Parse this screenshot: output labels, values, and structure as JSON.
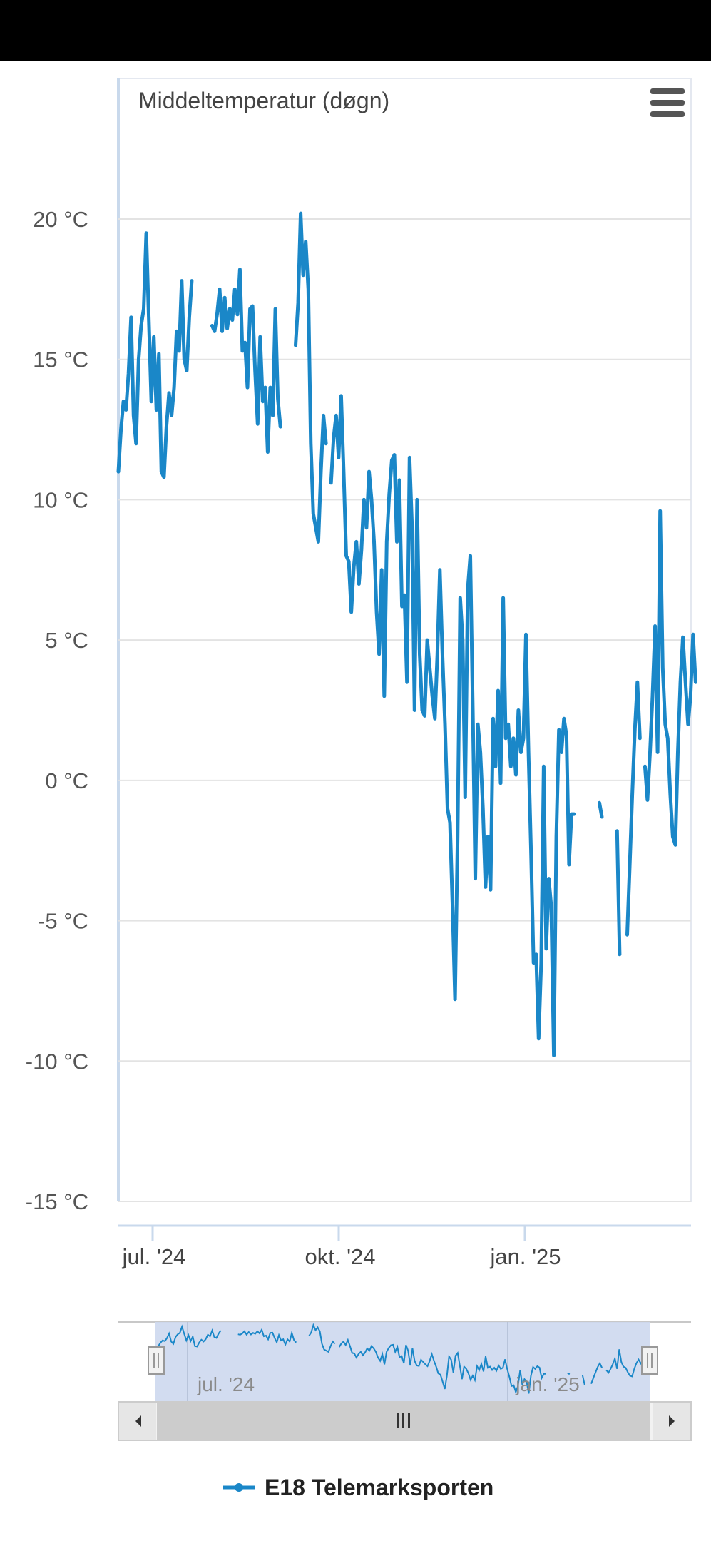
{
  "chart_data": {
    "type": "line",
    "title": "Middeltemperatur (døgn)",
    "yticks": [
      "20 °C",
      "15 °C",
      "10 °C",
      "5 °C",
      "0 °C",
      "-5 °C",
      "-10 °C",
      "-15 °C"
    ],
    "ylim": [
      -15,
      20
    ],
    "xticks": [
      "jul. '24",
      "okt. '24",
      "jan. '25"
    ],
    "navigator": {
      "xticks": [
        "jul. '24",
        "jan. '25"
      ]
    },
    "grid": true,
    "legend_position": "bottom",
    "series": [
      {
        "name": "E18 Telemarksporten",
        "color": "#1a87c8",
        "values": [
          [
            0,
            11
          ],
          [
            1,
            12.5
          ],
          [
            2,
            13.5
          ],
          [
            3,
            13.2
          ],
          [
            4,
            14.5
          ],
          [
            5,
            16.5
          ],
          [
            6,
            13
          ],
          [
            7,
            12
          ],
          [
            8,
            15
          ],
          [
            9,
            16.2
          ],
          [
            10,
            16.8
          ],
          [
            11,
            19.5
          ],
          [
            12,
            16.5
          ],
          [
            13,
            13.5
          ],
          [
            14,
            15.8
          ],
          [
            15,
            13.2
          ],
          [
            16,
            15.2
          ],
          [
            17,
            11
          ],
          [
            18,
            10.8
          ],
          [
            19,
            12.6
          ],
          [
            20,
            13.8
          ],
          [
            21,
            13
          ],
          [
            22,
            14
          ],
          [
            23,
            16
          ],
          [
            24,
            15.3
          ],
          [
            25,
            17.8
          ],
          [
            26,
            15
          ],
          [
            27,
            14.6
          ],
          [
            28,
            16.5
          ],
          [
            29,
            17.8
          ],
          [
            37,
            16.2
          ],
          [
            38,
            16
          ],
          [
            39,
            16.6
          ],
          [
            40,
            17.5
          ],
          [
            41,
            16
          ],
          [
            42,
            17.2
          ],
          [
            43,
            16.1
          ],
          [
            44,
            16.8
          ],
          [
            45,
            16.4
          ],
          [
            46,
            17.5
          ],
          [
            47,
            16.6
          ],
          [
            48,
            18.2
          ],
          [
            49,
            15.3
          ],
          [
            50,
            15.6
          ],
          [
            51,
            14
          ],
          [
            52,
            16.8
          ],
          [
            53,
            16.9
          ],
          [
            54,
            14.6
          ],
          [
            55,
            12.7
          ],
          [
            56,
            15.8
          ],
          [
            57,
            13.5
          ],
          [
            58,
            14
          ],
          [
            59,
            11.7
          ],
          [
            60,
            14
          ],
          [
            61,
            13
          ],
          [
            62,
            16.8
          ],
          [
            63,
            13.6
          ],
          [
            64,
            12.6
          ],
          [
            70,
            15.5
          ],
          [
            71,
            17
          ],
          [
            72,
            20.2
          ],
          [
            73,
            18
          ],
          [
            74,
            19.2
          ],
          [
            75,
            17.5
          ],
          [
            76,
            12
          ],
          [
            77,
            9.5
          ],
          [
            78,
            9
          ],
          [
            79,
            8.5
          ],
          [
            80,
            11
          ],
          [
            81,
            13
          ],
          [
            82,
            12
          ],
          [
            84,
            10.6
          ],
          [
            85,
            12.2
          ],
          [
            86,
            13
          ],
          [
            87,
            11.5
          ],
          [
            88,
            13.7
          ],
          [
            89,
            11
          ],
          [
            90,
            8
          ],
          [
            91,
            7.8
          ],
          [
            92,
            6
          ],
          [
            93,
            7.6
          ],
          [
            94,
            8.5
          ],
          [
            95,
            7
          ],
          [
            96,
            8.2
          ],
          [
            97,
            10
          ],
          [
            98,
            9
          ],
          [
            99,
            11
          ],
          [
            100,
            10
          ],
          [
            101,
            8.5
          ],
          [
            102,
            6
          ],
          [
            103,
            4.5
          ],
          [
            104,
            7.5
          ],
          [
            105,
            3
          ],
          [
            106,
            8.5
          ],
          [
            107,
            10.2
          ],
          [
            108,
            11.4
          ],
          [
            109,
            11.6
          ],
          [
            110,
            8.5
          ],
          [
            111,
            10.7
          ],
          [
            112,
            6.2
          ],
          [
            113,
            6.6
          ],
          [
            114,
            3.5
          ],
          [
            115,
            11.5
          ],
          [
            116,
            9
          ],
          [
            117,
            2.5
          ],
          [
            118,
            10
          ],
          [
            119,
            4.5
          ],
          [
            120,
            2.5
          ],
          [
            121,
            2.3
          ],
          [
            122,
            5
          ],
          [
            123,
            4
          ],
          [
            124,
            3
          ],
          [
            125,
            2.2
          ],
          [
            126,
            4.5
          ],
          [
            127,
            7.5
          ],
          [
            128,
            4.5
          ],
          [
            129,
            2
          ],
          [
            130,
            -1
          ],
          [
            131,
            -1.5
          ],
          [
            132,
            -4.5
          ],
          [
            133,
            -7.8
          ],
          [
            134,
            -2
          ],
          [
            135,
            6.5
          ],
          [
            136,
            5
          ],
          [
            137,
            -0.6
          ],
          [
            138,
            6.8
          ],
          [
            139,
            8
          ],
          [
            140,
            2.5
          ],
          [
            141,
            -3.5
          ],
          [
            142,
            2
          ],
          [
            143,
            1
          ],
          [
            144,
            -1
          ],
          [
            145,
            -3.8
          ],
          [
            146,
            -2
          ],
          [
            147,
            -3.9
          ],
          [
            148,
            2.2
          ],
          [
            149,
            0.5
          ],
          [
            150,
            3.2
          ],
          [
            151,
            -0.1
          ],
          [
            152,
            6.5
          ],
          [
            153,
            1.5
          ],
          [
            154,
            2
          ],
          [
            155,
            0.5
          ],
          [
            156,
            1.5
          ],
          [
            157,
            0.2
          ],
          [
            158,
            2.5
          ],
          [
            159,
            1
          ],
          [
            160,
            1.5
          ],
          [
            161,
            5.2
          ],
          [
            162,
            1
          ],
          [
            163,
            -2.5
          ],
          [
            164,
            -6.5
          ],
          [
            165,
            -6.2
          ],
          [
            166,
            -9.2
          ],
          [
            167,
            -6.5
          ],
          [
            168,
            0.5
          ],
          [
            169,
            -6
          ],
          [
            170,
            -3.5
          ],
          [
            171,
            -4.5
          ],
          [
            172,
            -9.8
          ],
          [
            173,
            -2
          ],
          [
            174,
            1.8
          ],
          [
            175,
            1
          ],
          [
            176,
            2.2
          ],
          [
            177,
            1.6
          ],
          [
            178,
            -3
          ],
          [
            179,
            -1.2
          ],
          [
            180,
            -1.2
          ],
          [
            190,
            -0.8
          ],
          [
            191,
            -1.3
          ],
          [
            197,
            -1.8
          ],
          [
            198,
            -6.2
          ],
          [
            201,
            -5.5
          ],
          [
            202,
            -3
          ],
          [
            203,
            -0.5
          ],
          [
            204,
            1.8
          ],
          [
            205,
            3.5
          ],
          [
            206,
            1.5
          ],
          [
            208,
            0.5
          ],
          [
            209,
            -0.7
          ],
          [
            210,
            1
          ],
          [
            211,
            3
          ],
          [
            212,
            5.5
          ],
          [
            213,
            1
          ],
          [
            214,
            9.6
          ],
          [
            215,
            4
          ],
          [
            216,
            2
          ],
          [
            217,
            1.5
          ],
          [
            218,
            -0.5
          ],
          [
            219,
            -2
          ],
          [
            220,
            -2.3
          ],
          [
            221,
            1
          ],
          [
            222,
            3.5
          ],
          [
            223,
            5.1
          ],
          [
            224,
            3.5
          ],
          [
            225,
            2
          ],
          [
            226,
            3
          ],
          [
            227,
            5.2
          ],
          [
            228,
            3.5
          ]
        ]
      }
    ]
  }
}
